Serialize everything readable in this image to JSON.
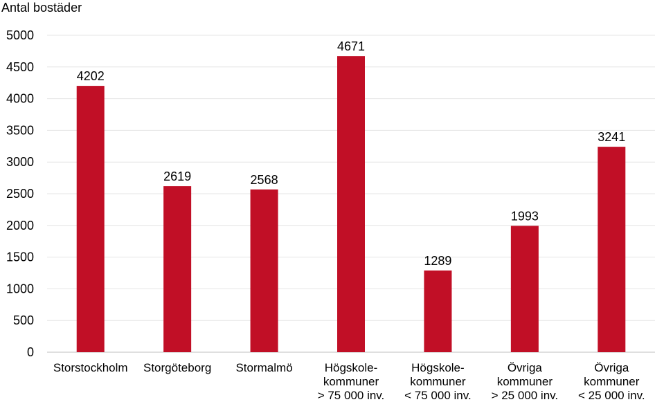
{
  "chart_data": {
    "type": "bar",
    "title": "",
    "xlabel": "",
    "ylabel": "Antal bostäder",
    "ylim": [
      0,
      5000
    ],
    "yticks": [
      0,
      500,
      1000,
      1500,
      2000,
      2500,
      3000,
      3500,
      4000,
      4500,
      5000
    ],
    "grid": true,
    "bar_color": "#c10f26",
    "categories": [
      [
        "Storstockholm"
      ],
      [
        "Storgöteborg"
      ],
      [
        "Stormalmö"
      ],
      [
        "Högskole-",
        "kommuner",
        "> 75 000 inv."
      ],
      [
        "Högskole-",
        "kommuner",
        "< 75 000 inv."
      ],
      [
        "Övriga",
        "kommuner",
        "> 25 000 inv."
      ],
      [
        "Övriga",
        "kommuner",
        "< 25 000 inv."
      ]
    ],
    "values": [
      4202,
      2619,
      2568,
      4671,
      1289,
      1993,
      3241
    ]
  }
}
